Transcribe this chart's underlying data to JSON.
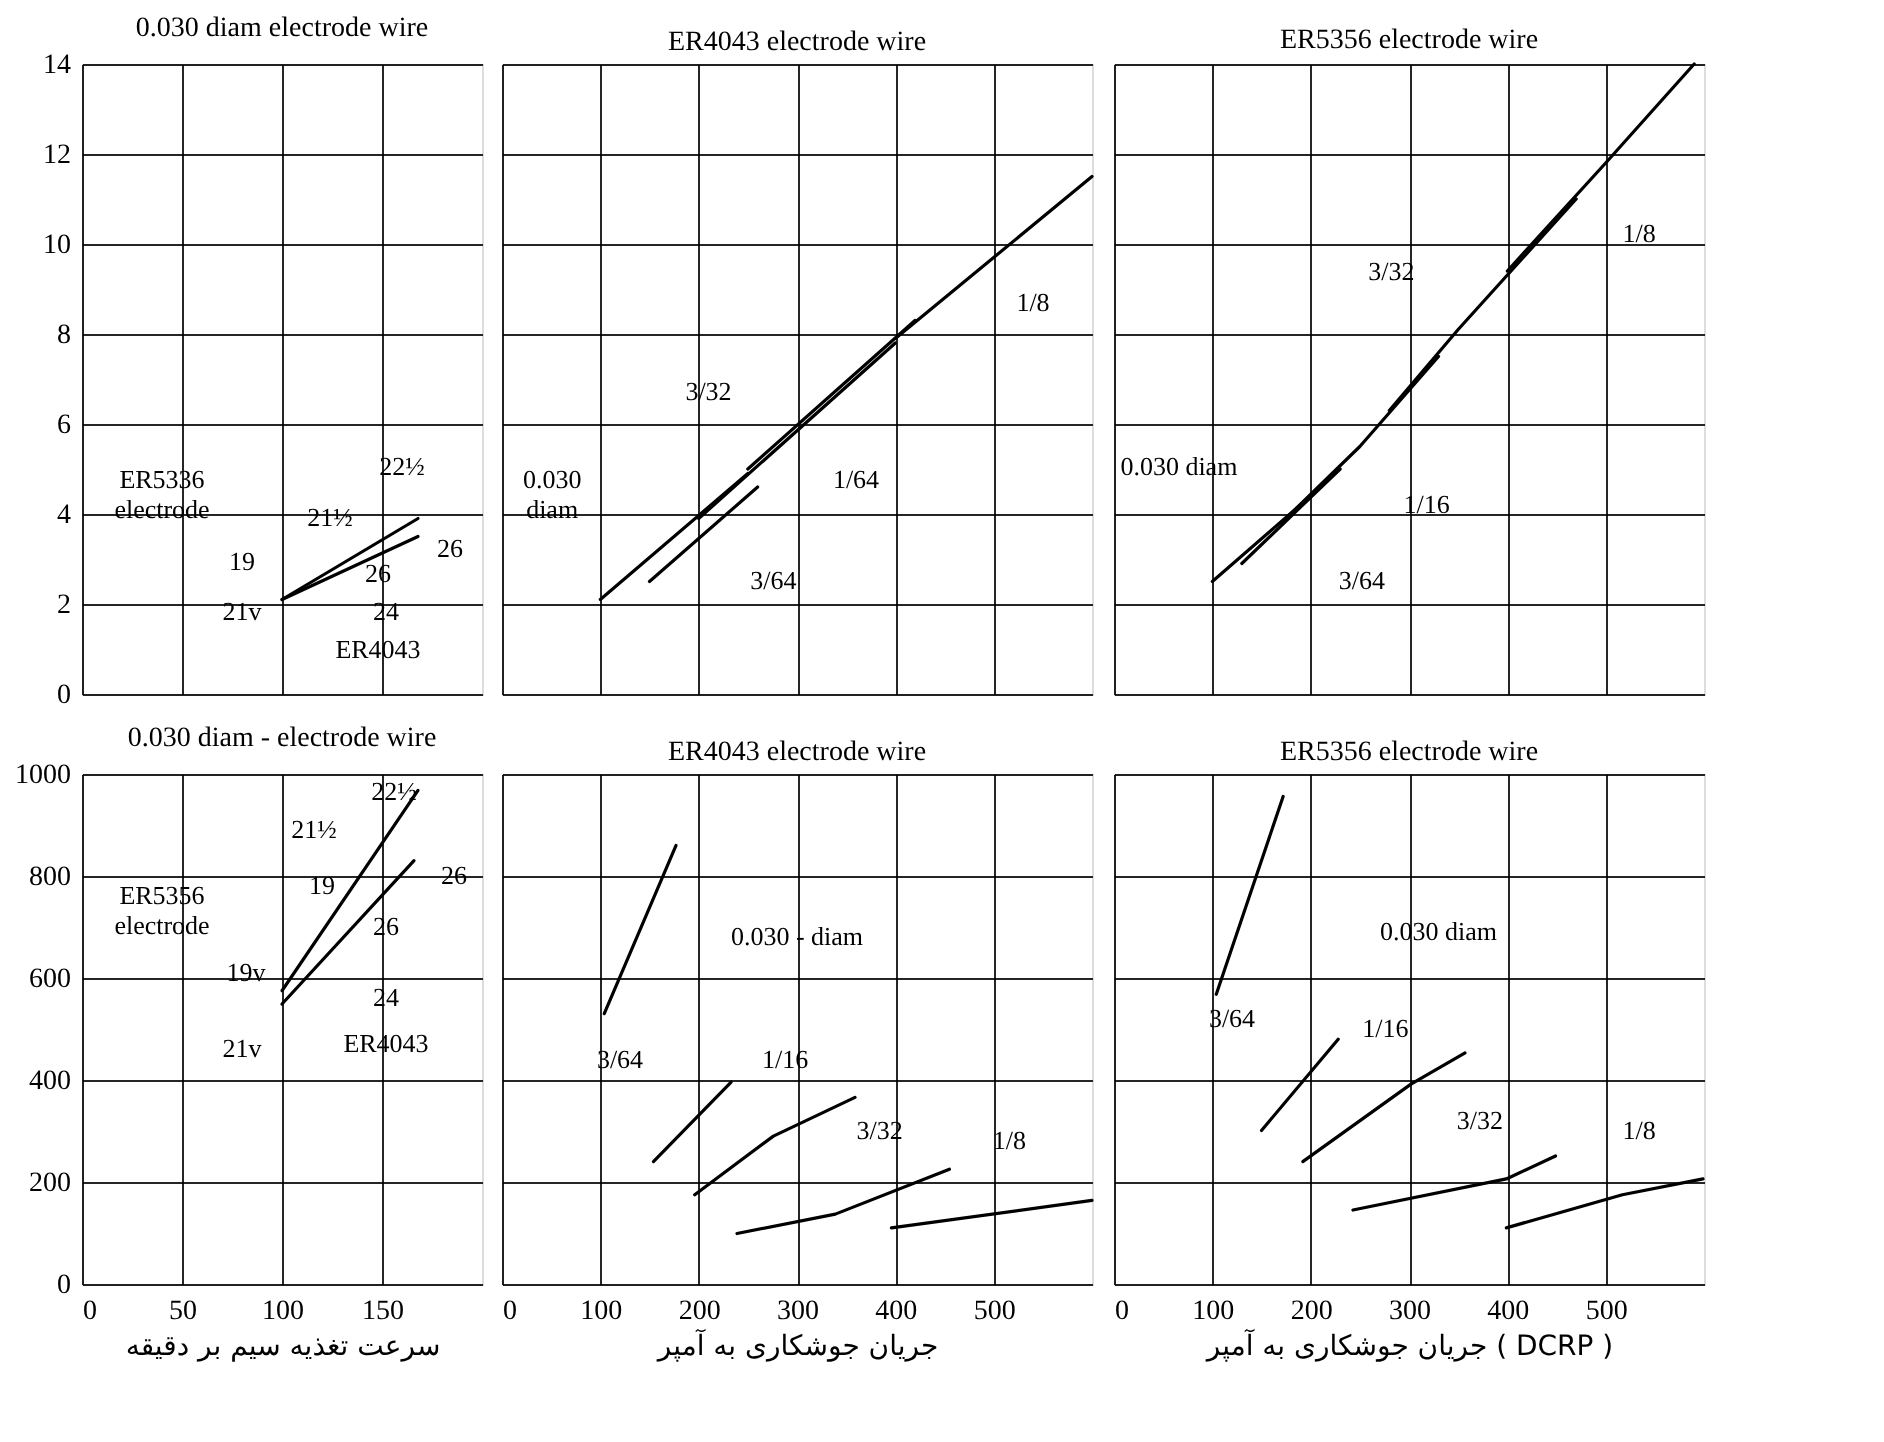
{
  "chart_data": [
    {
      "type": "line",
      "title": "0.030 diam electrode wire",
      "xlim": [
        0,
        200
      ],
      "xticks": [
        0,
        50,
        100,
        150
      ],
      "ylim": [
        0,
        14
      ],
      "yticks": [
        0,
        2,
        4,
        6,
        8,
        10,
        12,
        14
      ],
      "tick_labels": "y",
      "grid": true,
      "line_style": "solid",
      "series": [
        {
          "color": "#000000",
          "x": [
            100,
            168
          ],
          "values": [
            2.1,
            3.9
          ]
        },
        {
          "color": "#000000",
          "x": [
            100,
            168
          ],
          "values": [
            2.1,
            3.5
          ]
        }
      ],
      "annotations": [
        "ER5336\nelectrode",
        "ER4043",
        "22½",
        "21½",
        "19",
        "21v",
        "24",
        "26",
        "26"
      ]
    },
    {
      "type": "line",
      "title": "ER4043 electrode wire",
      "xlim": [
        0,
        600
      ],
      "xticks": [
        0,
        100,
        200,
        300,
        400,
        500
      ],
      "ylim": [
        0,
        14
      ],
      "yticks": [
        0,
        2,
        4,
        6,
        8,
        10,
        12,
        14
      ],
      "tick_labels": false,
      "grid": true,
      "line_style": "solid",
      "series": [
        {
          "color": "#000000",
          "x": [
            100,
            250
          ],
          "values": [
            2.1,
            4.9
          ]
        },
        {
          "color": "#000000",
          "x": [
            150,
            260
          ],
          "values": [
            2.5,
            4.6
          ]
        },
        {
          "color": "#000000",
          "x": [
            200,
            400
          ],
          "values": [
            3.9,
            7.8
          ]
        },
        {
          "color": "#000000",
          "x": [
            250,
            420
          ],
          "values": [
            5.0,
            8.3
          ]
        },
        {
          "color": "#000000",
          "x": [
            400,
            600
          ],
          "values": [
            7.9,
            11.5
          ]
        }
      ],
      "annotations": [
        "0.030\ndiam",
        "3/32",
        "1/64",
        "3/64",
        "1/8"
      ]
    },
    {
      "type": "line",
      "title": "ER5356 electrode wire",
      "xlim": [
        0,
        600
      ],
      "xticks": [
        0,
        100,
        200,
        300,
        400,
        500
      ],
      "ylim": [
        0,
        14
      ],
      "yticks": [
        0,
        2,
        4,
        6,
        8,
        10,
        12,
        14
      ],
      "tick_labels": false,
      "grid": true,
      "line_style": "solid",
      "series": [
        {
          "color": "#000000",
          "x": [
            100,
            200
          ],
          "values": [
            2.5,
            4.4
          ]
        },
        {
          "color": "#000000",
          "x": [
            130,
            230
          ],
          "values": [
            2.9,
            5.0
          ]
        },
        {
          "color": "#000000",
          "x": [
            170,
            250,
            330
          ],
          "values": [
            3.8,
            5.5,
            7.5
          ]
        },
        {
          "color": "#000000",
          "x": [
            280,
            350,
            470
          ],
          "values": [
            6.3,
            8.1,
            11.0
          ]
        },
        {
          "color": "#000000",
          "x": [
            400,
            500,
            590
          ],
          "values": [
            9.4,
            11.8,
            14.0
          ]
        }
      ],
      "annotations": [
        "0.030 diam",
        "3/64",
        "1/16",
        "3/32",
        "1/8"
      ]
    },
    {
      "type": "line",
      "title": "0.030 diam - electrode wire",
      "xlabel": "سرعت تغذیه سیم بر دقیقه",
      "xlim": [
        0,
        200
      ],
      "xticks": [
        0,
        50,
        100,
        150
      ],
      "ylim": [
        0,
        1000
      ],
      "yticks": [
        0,
        200,
        400,
        600,
        800,
        1000
      ],
      "grid": true,
      "line_style": "solid",
      "series": [
        {
          "color": "#000000",
          "x": [
            100,
            168
          ],
          "values": [
            575,
            968
          ]
        },
        {
          "color": "#000000",
          "x": [
            100,
            166
          ],
          "values": [
            549,
            830
          ]
        }
      ],
      "annotations": [
        "ER5356\nelectrode",
        "ER4043",
        "22½",
        "21½",
        "19",
        "19v",
        "21v",
        "24",
        "26",
        "26"
      ]
    },
    {
      "type": "line",
      "title": "ER4043 electrode wire",
      "xlabel": "جریان جوشکاری به آمپر",
      "xlim": [
        0,
        600
      ],
      "xticks": [
        0,
        100,
        200,
        300,
        400,
        500
      ],
      "ylim": [
        0,
        1000
      ],
      "yticks": [
        0,
        200,
        400,
        600,
        800,
        1000
      ],
      "tick_labels": "x",
      "grid": true,
      "line_style": "solid",
      "series": [
        {
          "color": "#000000",
          "x": [
            104,
            177
          ],
          "values": [
            530,
            860
          ]
        },
        {
          "color": "#000000",
          "x": [
            154,
            233
          ],
          "values": [
            240,
            396
          ]
        },
        {
          "color": "#000000",
          "x": [
            196,
            276,
            359
          ],
          "values": [
            175,
            290,
            366
          ]
        },
        {
          "color": "#000000",
          "x": [
            239,
            339,
            455
          ],
          "values": [
            99,
            137,
            225
          ]
        },
        {
          "color": "#000000",
          "x": [
            396,
            600
          ],
          "values": [
            110,
            164
          ]
        }
      ],
      "annotations": [
        "0.030 - diam",
        "3/64",
        "1/16",
        "3/32",
        "1/8"
      ]
    },
    {
      "type": "line",
      "title": "ER5356 electrode wire",
      "xlabel": "جریان جوشکاری به آمپر ( DCRP )",
      "xlim": [
        0,
        600
      ],
      "xticks": [
        0,
        100,
        200,
        300,
        400,
        500
      ],
      "ylim": [
        0,
        1000
      ],
      "yticks": [
        0,
        200,
        400,
        600,
        800,
        1000
      ],
      "tick_labels": "x",
      "grid": true,
      "line_style": "solid",
      "series": [
        {
          "color": "#000000",
          "x": [
            104,
            172
          ],
          "values": [
            568,
            956
          ]
        },
        {
          "color": "#000000",
          "x": [
            150,
            228
          ],
          "values": [
            301,
            480
          ]
        },
        {
          "color": "#000000",
          "x": [
            192,
            302,
            357
          ],
          "values": [
            240,
            392,
            453
          ]
        },
        {
          "color": "#000000",
          "x": [
            243,
            399,
            449
          ],
          "values": [
            145,
            206,
            251
          ]
        },
        {
          "color": "#000000",
          "x": [
            399,
            517,
            599
          ],
          "values": [
            110,
            175,
            206
          ]
        }
      ],
      "annotations": [
        "0.030 diam",
        "3/64",
        "1/16",
        "3/32",
        "1/8"
      ]
    }
  ]
}
